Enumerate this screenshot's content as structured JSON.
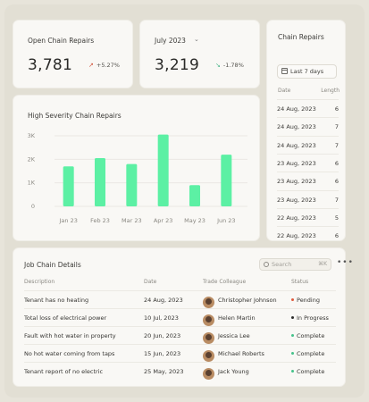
{
  "kpis": [
    {
      "title": "Open Chain Repairs",
      "value": "3,781",
      "delta": "+5.27%",
      "trend": "up"
    },
    {
      "title": "July 2023",
      "value": "3,219",
      "delta": "-1.78%",
      "trend": "down"
    }
  ],
  "repairs": {
    "title": "Chain Repairs",
    "filter": "Last 7 days",
    "col_date": "Date",
    "col_length": "Length",
    "rows": [
      {
        "date": "24 Aug, 2023",
        "length": "6"
      },
      {
        "date": "24 Aug, 2023",
        "length": "7"
      },
      {
        "date": "24 Aug, 2023",
        "length": "7"
      },
      {
        "date": "23 Aug, 2023",
        "length": "6"
      },
      {
        "date": "23 Aug, 2023",
        "length": "6"
      },
      {
        "date": "23 Aug, 2023",
        "length": "7"
      },
      {
        "date": "22 Aug, 2023",
        "length": "5"
      },
      {
        "date": "22 Aug, 2023",
        "length": "6"
      }
    ]
  },
  "chart_data": {
    "type": "bar",
    "title": "High Severity Chain Repairs",
    "categories": [
      "Jan 23",
      "Feb 23",
      "Mar 23",
      "Apr 23",
      "May 23",
      "Jun 23"
    ],
    "values": [
      1700,
      2050,
      1800,
      3050,
      900,
      2200
    ],
    "ylim": [
      0,
      3000
    ],
    "yticks": [
      "0",
      "1K",
      "2K",
      "3K"
    ],
    "bar_color": "#5cf0a4",
    "grid": true
  },
  "jobs": {
    "title": "Job Chain Details",
    "search_placeholder": "Search",
    "search_shortcut": "⌘K",
    "more": "•••",
    "headers": {
      "description": "Description",
      "date": "Date",
      "colleague": "Trade Colleague",
      "status": "Status"
    },
    "rows": [
      {
        "description": "Tenant has no heating",
        "date": "24 Aug, 2023",
        "colleague": "Christopher Johnson",
        "status": "Pending",
        "status_color": "#e05a3c"
      },
      {
        "description": "Total loss of electrical power",
        "date": "10 Jul, 2023",
        "colleague": "Helen Martin",
        "status": "In Progress",
        "status_color": "#2c2c2a"
      },
      {
        "description": "Fault with hot water in property",
        "date": "20 Jun, 2023",
        "colleague": "Jessica Lee",
        "status": "Complete",
        "status_color": "#45c28a"
      },
      {
        "description": "No hot water coming from taps",
        "date": "15 Jun, 2023",
        "colleague": "Michael Roberts",
        "status": "Complete",
        "status_color": "#45c28a"
      },
      {
        "description": "Tenant report of no electric",
        "date": "25 May, 2023",
        "colleague": "Jack Young",
        "status": "Complete",
        "status_color": "#45c28a"
      }
    ]
  },
  "colors": {
    "up": "#d2563d",
    "down": "#47b387",
    "accent": "#5cf0a4"
  }
}
